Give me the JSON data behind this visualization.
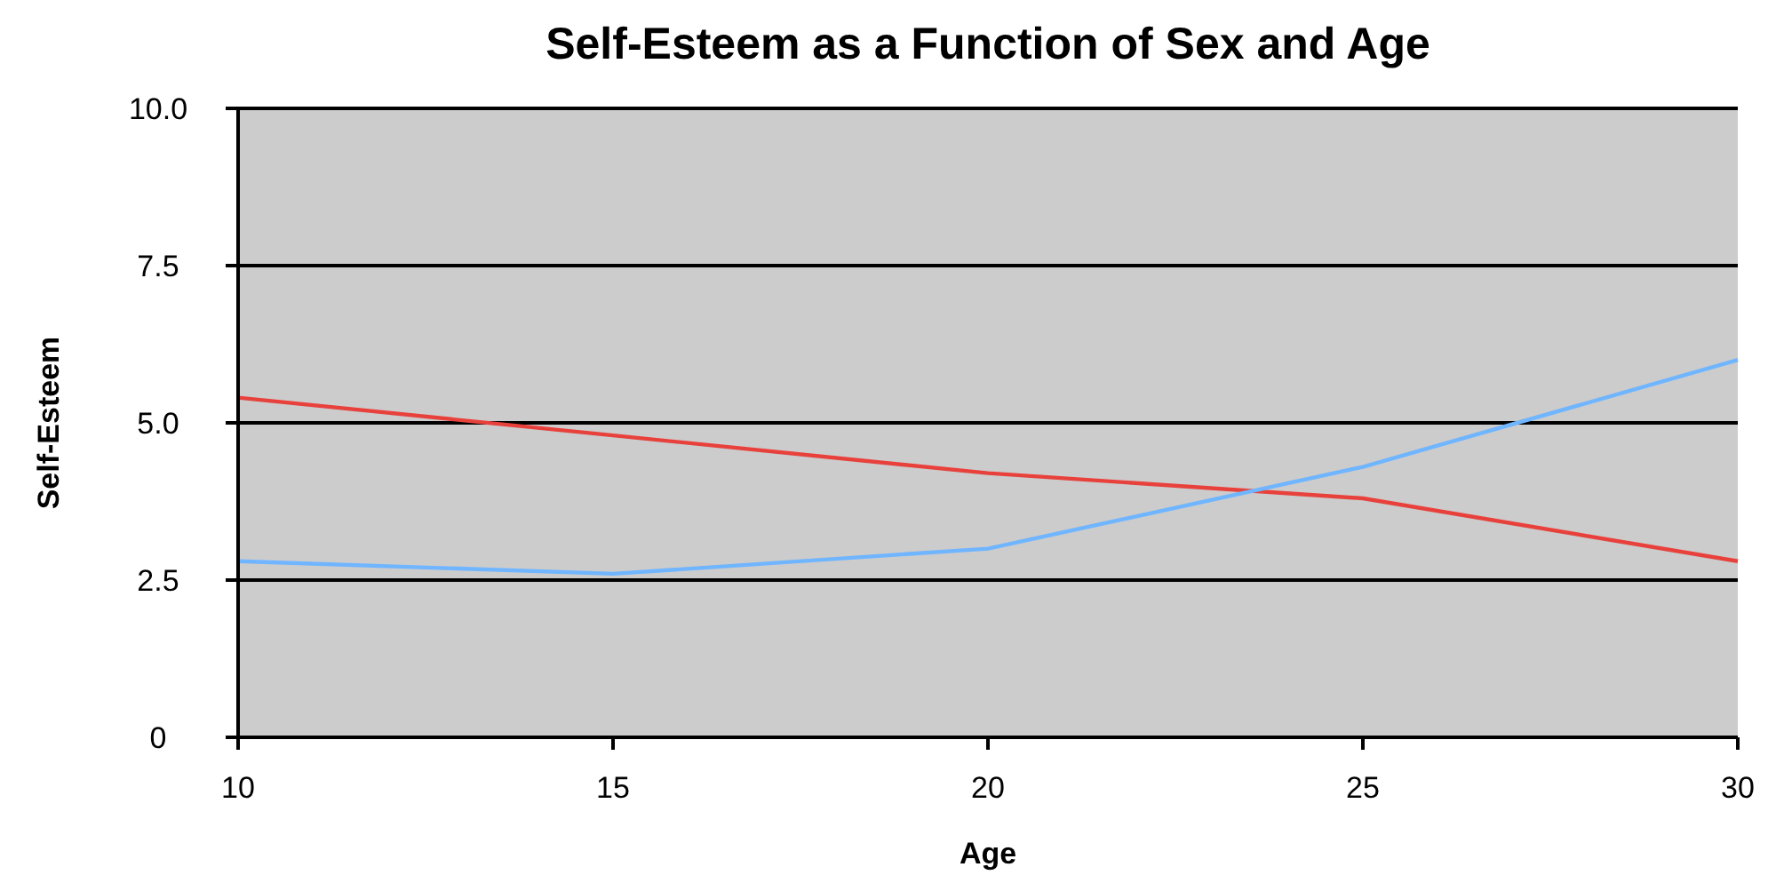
{
  "chart_data": {
    "type": "line",
    "title": "Self-Esteem as a Function of Sex and Age",
    "xlabel": "Age",
    "ylabel": "Self-Esteem",
    "x": [
      10,
      15,
      20,
      25,
      30
    ],
    "series": [
      {
        "color": "#e8413c",
        "values": [
          5.4,
          4.8,
          4.2,
          3.8,
          2.8
        ]
      },
      {
        "color": "#6fb5ff",
        "values": [
          2.8,
          2.6,
          3.0,
          4.3,
          6.0
        ]
      }
    ],
    "xlim": [
      10,
      30
    ],
    "xticks": [
      10,
      15,
      20,
      25,
      30
    ],
    "ylim": [
      0,
      10
    ],
    "yticks": [
      0,
      2.5,
      {
        "value": 5,
        "label": "5.0"
      },
      7.5,
      {
        "value": 10,
        "label": "10.0"
      }
    ],
    "grid": "y",
    "marker": "none",
    "line_style": "solid"
  }
}
